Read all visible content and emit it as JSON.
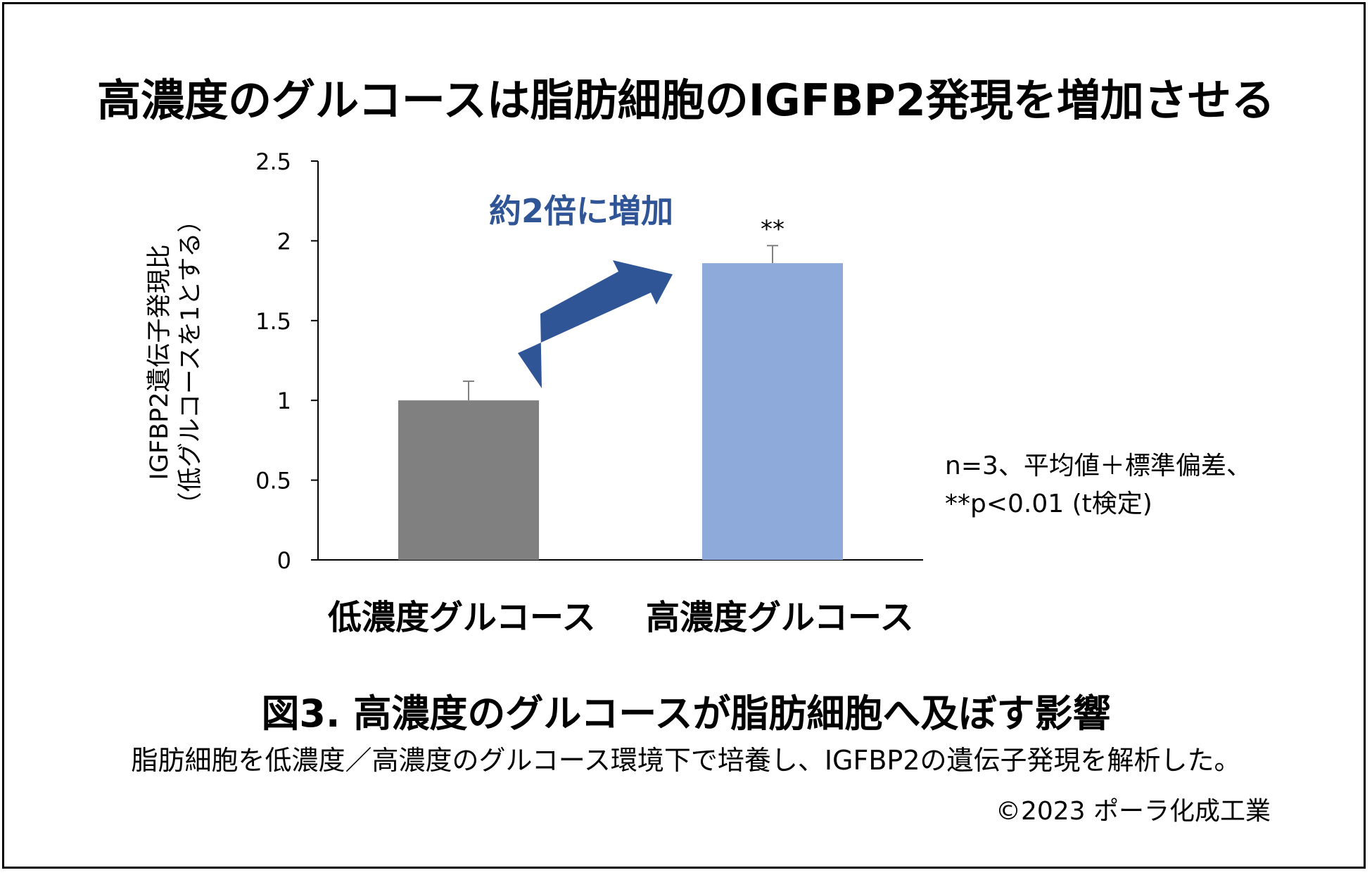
{
  "title": "高濃度のグルコースは脂肪細胞のIGFBP2発現を増加させる",
  "chart_data": {
    "type": "bar",
    "categories": [
      "低濃度グルコース",
      "高濃度グルコース"
    ],
    "values": [
      1.0,
      1.86
    ],
    "errors": [
      0.12,
      0.11
    ],
    "colors": [
      "#808080",
      "#8eaadb"
    ],
    "ylim": [
      0,
      2.5
    ],
    "yticks": [
      "0",
      "0.5",
      "1",
      "1.5",
      "2",
      "2.5"
    ],
    "ytick_values": [
      0,
      0.5,
      1,
      1.5,
      2,
      2.5
    ],
    "ylabel_line1": "IGFBP2遺伝子発現比",
    "ylabel_line2": "（低グルコースを1とする）",
    "significance": "**",
    "annotation": "約2倍に増加",
    "arrow_color": "#2f5597",
    "annotation_color": "#2f5597",
    "note_line1": "n=3、平均値＋標準偏差、",
    "note_line2": "**p<0.01 (t検定)"
  },
  "figure_title": "図3. 高濃度のグルコースが脂肪細胞へ及ぼす影響",
  "figure_description": "脂肪細胞を低濃度／高濃度のグルコース環境下で培養し、IGFBP2の遺伝子発現を解析した。",
  "copyright": "©2023 ポーラ化成工業"
}
